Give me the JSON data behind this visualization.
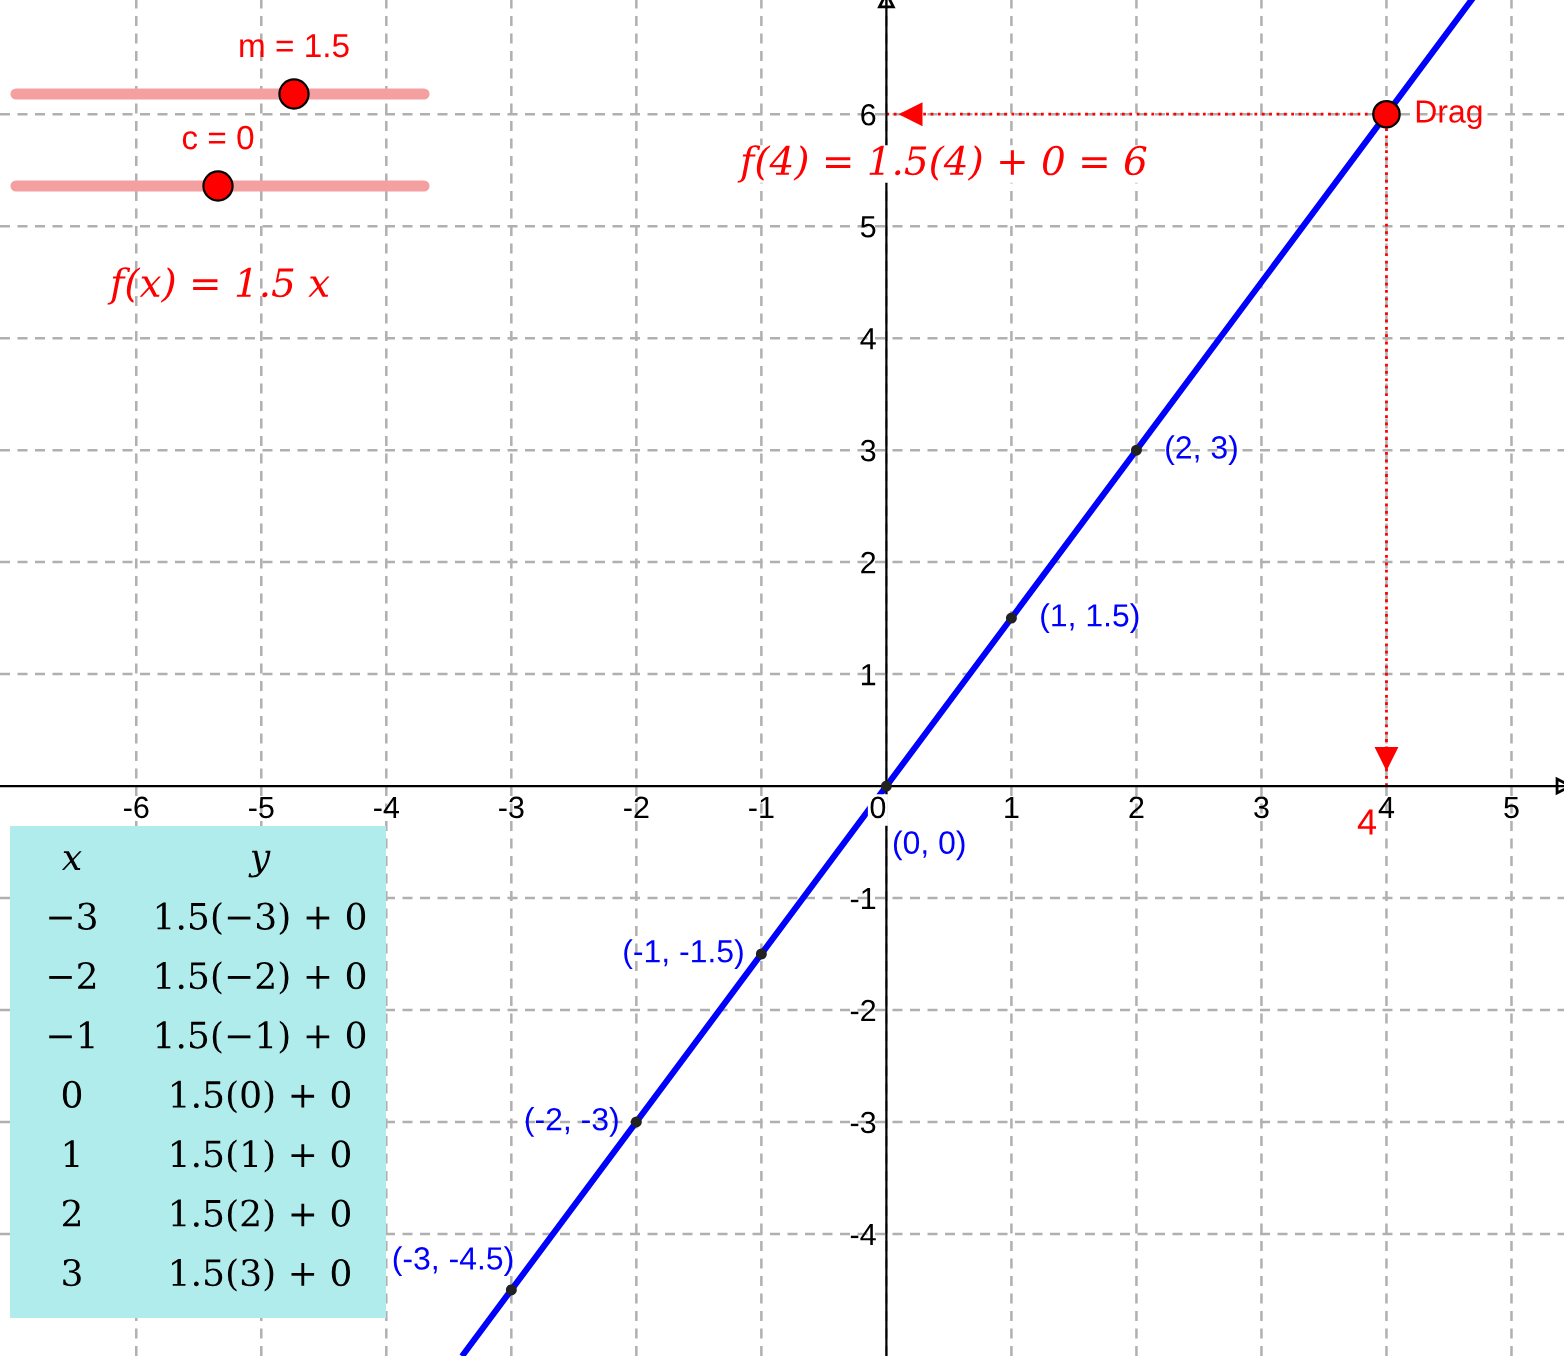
{
  "chart_data": {
    "type": "line",
    "xlim": [
      -7.09,
      5.42
    ],
    "ylim": [
      -5.09,
      7.02
    ],
    "xticks": [
      -6,
      -5,
      -4,
      -3,
      -2,
      -1,
      0,
      1,
      2,
      3,
      4,
      5
    ],
    "yticks": [
      -4,
      -3,
      -2,
      -1,
      1,
      2,
      3,
      4,
      5,
      6
    ],
    "grid": true,
    "series": [
      {
        "color": "#0000ff",
        "x": [
          -3.38,
          4.68
        ],
        "values": [
          -5.07,
          7.02
        ],
        "marker": "none",
        "line_style": "solid"
      },
      {
        "type": "scatter",
        "color": "#222222",
        "x": [
          -3,
          -2,
          -1,
          0,
          1,
          2
        ],
        "values": [
          -4.5,
          -3,
          -1.5,
          0,
          1.5,
          3
        ],
        "marker": "circle"
      },
      {
        "type": "scatter",
        "color": "#ff0000",
        "x": [
          4
        ],
        "values": [
          6
        ],
        "marker": "circle"
      }
    ],
    "ref_lines": [
      {
        "axis": "x",
        "value": 4,
        "label": "4",
        "color": "#ff0000",
        "line_style": "dotted"
      },
      {
        "axis": "y",
        "value": 6,
        "color": "#ff0000",
        "line_style": "dotted"
      }
    ],
    "annotations": [
      {
        "text": "(-3, -4.5)",
        "x": -3,
        "y": -4.5
      },
      {
        "text": "(-2, -3)",
        "x": -2,
        "y": -3
      },
      {
        "text": "(-1, -1.5)",
        "x": -1,
        "y": -1.5
      },
      {
        "text": "(0, 0)",
        "x": 0,
        "y": 0
      },
      {
        "text": "(1, 1.5)",
        "x": 1,
        "y": 1.5
      },
      {
        "text": "(2, 3)",
        "x": 2,
        "y": 3
      },
      {
        "text": "Drag",
        "x": 4,
        "y": 6
      },
      "m = 1.5",
      "c = 0",
      "f(x) = 1.5 x",
      "f(4) = 1.5(4) + 0 = 6",
      "x",
      "y",
      "−3",
      "1.5(−3) + 0",
      "−2",
      "1.5(−2) + 0",
      "−1",
      "1.5(−1) + 0",
      "0",
      "1.5(0) + 0",
      "1",
      "1.5(1) + 0",
      "2",
      "1.5(2) + 0",
      "3",
      "1.5(3) + 0"
    ]
  }
}
